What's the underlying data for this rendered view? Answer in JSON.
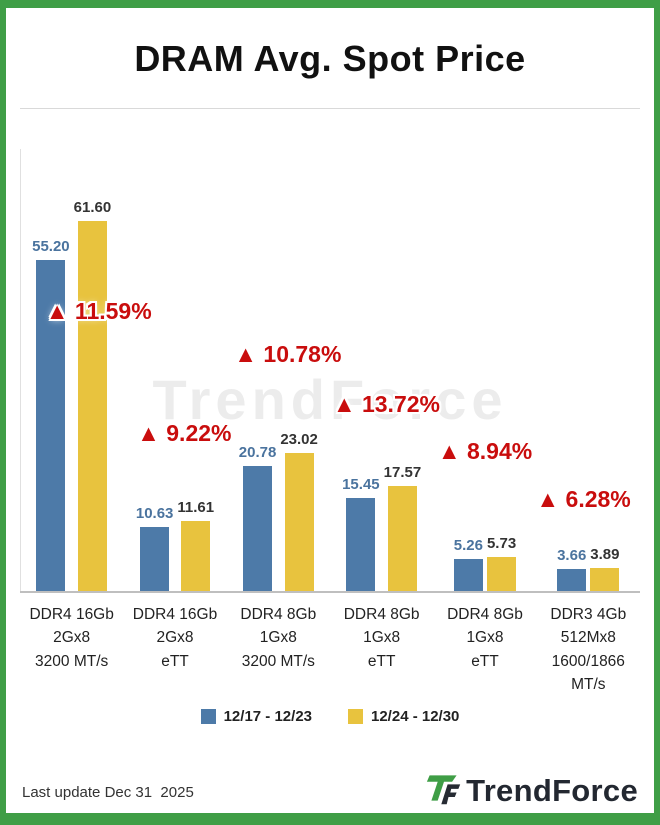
{
  "title": "DRAM Avg. Spot Price",
  "chart_data": {
    "type": "bar",
    "title": "DRAM Avg. Spot Price",
    "categories": [
      "DDR4 16Gb\n2Gx8\n3200 MT/s",
      "DDR4 16Gb\n2Gx8\neTT",
      "DDR4 8Gb\n1Gx8\n3200 MT/s",
      "DDR4 8Gb\n1Gx8\neTT",
      "DDR4 8Gb\n1Gx8\neTT",
      "DDR3 4Gb\n512Mx8\n1600/1866\nMT/s"
    ],
    "series": [
      {
        "name": "12/17 - 12/23",
        "color": "#4d7aa8",
        "values": [
          55.2,
          10.63,
          20.78,
          15.45,
          5.26,
          3.66
        ]
      },
      {
        "name": "12/24 - 12/30",
        "color": "#e8c33e",
        "values": [
          61.6,
          11.61,
          23.02,
          17.57,
          5.73,
          3.89
        ]
      }
    ],
    "change_labels": [
      "▲ 11.59%",
      "▲ 9.22%",
      "▲ 10.78%",
      "▲ 13.72%",
      "▲ 8.94%",
      "▲ 6.28%"
    ],
    "change_pct": [
      11.59,
      9.22,
      10.78,
      13.72,
      8.94,
      6.28
    ],
    "ylim": [
      0,
      66
    ],
    "grid": false,
    "legend_position": "bottom"
  },
  "legend": [
    {
      "label": "12/17 - 12/23",
      "color": "#4d7aa8"
    },
    {
      "label": "12/24 - 12/30",
      "color": "#e8c33e"
    }
  ],
  "watermark": "TrendForce",
  "footer": {
    "last_update": "Last update Dec 31  2025",
    "brand": "TrendForce"
  },
  "colors": {
    "frame_green": "#3f9e46",
    "change_red": "#c90d0d",
    "bar_blue": "#4d7aa8",
    "bar_yellow": "#e8c33e"
  }
}
